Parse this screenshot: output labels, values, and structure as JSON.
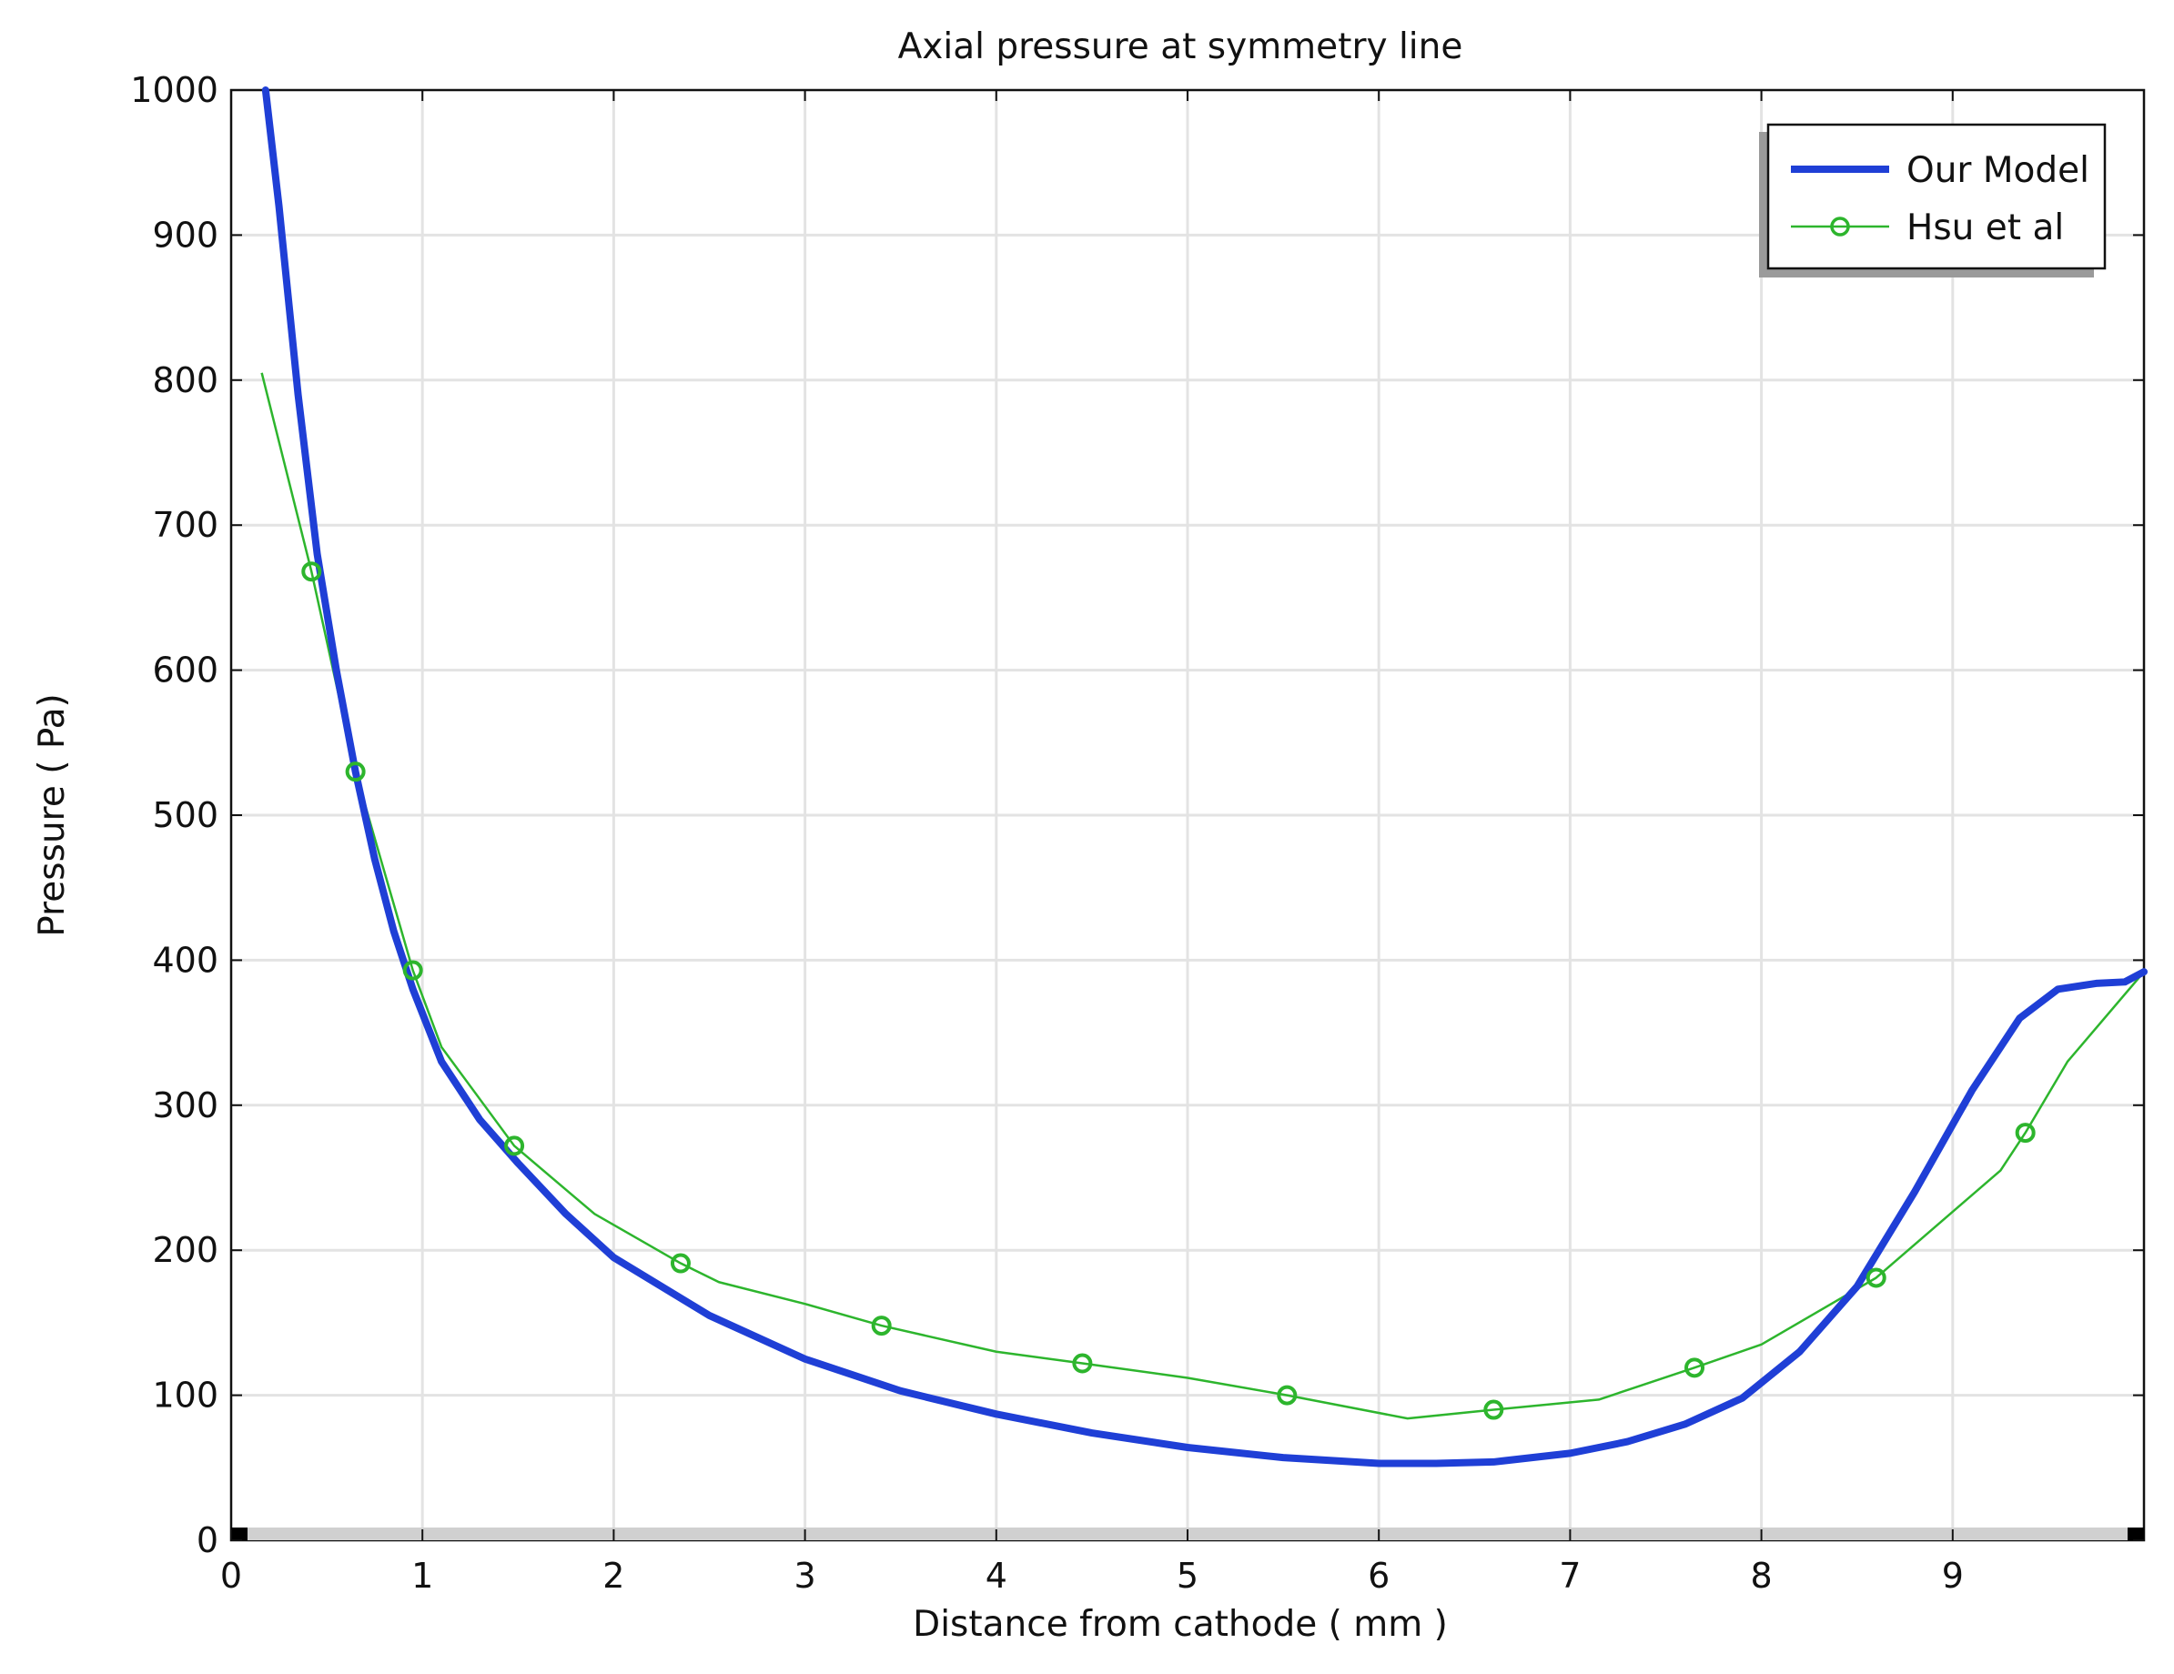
{
  "chart_data": {
    "type": "line",
    "title": "Axial pressure at symmetry line",
    "xlabel": "Distance from cathode ( mm )",
    "ylabel": "Pressure ( Pa)",
    "xlim": [
      0,
      10
    ],
    "ylim": [
      0,
      1000
    ],
    "xticks": [
      0,
      1,
      2,
      3,
      4,
      5,
      6,
      7,
      8,
      9
    ],
    "yticks": [
      0,
      100,
      200,
      300,
      400,
      500,
      600,
      700,
      800,
      900,
      1000
    ],
    "grid": true,
    "legend_position": "top-right",
    "series": [
      {
        "name": "Our Model",
        "color": "#1f3fd6",
        "style": "thick-line",
        "x": [
          0.18,
          0.25,
          0.35,
          0.45,
          0.55,
          0.65,
          0.75,
          0.85,
          0.95,
          1.1,
          1.3,
          1.5,
          1.75,
          2.0,
          2.5,
          3.0,
          3.5,
          4.0,
          4.5,
          5.0,
          5.5,
          6.0,
          6.3,
          6.6,
          7.0,
          7.3,
          7.6,
          7.9,
          8.2,
          8.5,
          8.8,
          9.1,
          9.35,
          9.55,
          9.75,
          9.9,
          10.0
        ],
        "y": [
          1000,
          920,
          790,
          680,
          600,
          530,
          470,
          420,
          380,
          330,
          290,
          260,
          225,
          195,
          155,
          125,
          103,
          87,
          74,
          64,
          57,
          53,
          53,
          54,
          60,
          68,
          80,
          98,
          130,
          175,
          240,
          310,
          360,
          380,
          384,
          385,
          392
        ]
      },
      {
        "name": "Hsu et al",
        "color": "#2db52d",
        "style": "thin-line-circle-markers",
        "x": [
          0.16,
          0.42,
          0.65,
          0.95,
          1.1,
          1.48,
          1.9,
          2.35,
          2.55,
          3.0,
          3.4,
          4.0,
          4.45,
          5.0,
          5.52,
          6.15,
          6.6,
          7.15,
          7.65,
          8.0,
          8.6,
          9.25,
          9.38,
          9.6,
          10.0
        ],
        "y": [
          805,
          668,
          530,
          393,
          340,
          272,
          225,
          191,
          178,
          163,
          148,
          130,
          122,
          112,
          100,
          84,
          90,
          97,
          119,
          135,
          181,
          255,
          281,
          330,
          392
        ],
        "markers_x": [
          0.42,
          0.65,
          0.95,
          1.48,
          2.35,
          3.4,
          4.45,
          5.52,
          6.6,
          7.65,
          8.6,
          9.38
        ],
        "markers_y": [
          668,
          530,
          393,
          272,
          191,
          148,
          122,
          100,
          90,
          119,
          181,
          281
        ]
      }
    ]
  }
}
